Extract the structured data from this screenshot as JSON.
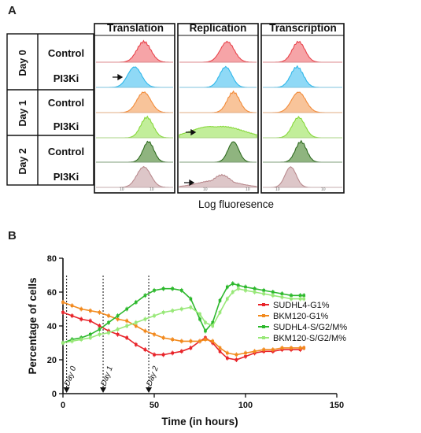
{
  "panel_a": {
    "letter": "A",
    "columns": [
      "Translation",
      "Replication",
      "Transcription"
    ],
    "days": [
      "Day 0",
      "Day 1",
      "Day 2"
    ],
    "rows": [
      "Control",
      "PI3Ki",
      "Control",
      "PI3Ki",
      "Control",
      "PI3Ki"
    ],
    "row_colors": [
      "#e8424a",
      "#2fb7ea",
      "#f28a38",
      "#86d83a",
      "#2f6b20",
      "#b98a8e"
    ],
    "row_fills": [
      "#f6a4a7",
      "#8fd9f6",
      "#f8c49a",
      "#c2ee9a",
      "#8fb47f",
      "#ddc6c8"
    ],
    "x_caption": "Log fluoresence",
    "mini_tick_label": "10"
  },
  "panel_b": {
    "letter": "B"
  },
  "chart_data": [
    {
      "type": "line",
      "title": "",
      "xlabel": "Time (in hours)",
      "ylabel": "Percentage of cells",
      "xlim": [
        0,
        150
      ],
      "ylim": [
        0,
        80
      ],
      "xticks": [
        0,
        50,
        100,
        150
      ],
      "yticks": [
        0,
        20,
        40,
        60,
        80
      ],
      "legend_position": "right",
      "grid": false,
      "annotations": [
        {
          "text": "Day 0",
          "x": 2
        },
        {
          "text": "Day 1",
          "x": 22
        },
        {
          "text": "Day 2",
          "x": 47
        }
      ],
      "series": [
        {
          "name": "SUDHL4-G1%",
          "color": "#e8242a",
          "x": [
            0,
            5,
            10,
            15,
            20,
            25,
            30,
            35,
            40,
            45,
            50,
            55,
            60,
            65,
            70,
            75,
            78,
            82,
            86,
            90,
            95,
            100,
            105,
            110,
            115,
            120,
            125,
            130,
            132
          ],
          "y": [
            48,
            46,
            44,
            43,
            40,
            37,
            35,
            33,
            29,
            26,
            23,
            23,
            24,
            25,
            27,
            31,
            33,
            30,
            25,
            21,
            20,
            22,
            24,
            25,
            25,
            26,
            26,
            26,
            27
          ]
        },
        {
          "name": "BKM120-G1%",
          "color": "#f28a1e",
          "x": [
            0,
            5,
            10,
            15,
            20,
            25,
            30,
            35,
            40,
            45,
            50,
            55,
            60,
            65,
            70,
            75,
            78,
            82,
            86,
            90,
            95,
            100,
            105,
            110,
            115,
            120,
            125,
            130,
            132
          ],
          "y": [
            54,
            52,
            50,
            49,
            48,
            46,
            44,
            43,
            40,
            37,
            35,
            33,
            32,
            31,
            31,
            31,
            32,
            31,
            27,
            24,
            23,
            24,
            25,
            26,
            26,
            27,
            27,
            27,
            27
          ]
        },
        {
          "name": "SUDHL4-S/G2/M%",
          "color": "#2db82d",
          "x": [
            0,
            5,
            10,
            15,
            20,
            25,
            30,
            35,
            40,
            45,
            50,
            55,
            60,
            65,
            70,
            75,
            78,
            82,
            86,
            90,
            93,
            96,
            100,
            105,
            110,
            115,
            120,
            125,
            130,
            132
          ],
          "y": [
            30,
            32,
            33,
            35,
            38,
            42,
            46,
            50,
            54,
            58,
            61,
            62,
            62,
            61,
            56,
            44,
            37,
            42,
            55,
            63,
            65,
            64,
            63,
            62,
            61,
            60,
            59,
            58,
            58,
            58
          ]
        },
        {
          "name": "BKM120-S/G2/M%",
          "color": "#98e878",
          "x": [
            0,
            5,
            10,
            15,
            20,
            25,
            30,
            35,
            40,
            45,
            50,
            55,
            60,
            65,
            70,
            75,
            78,
            82,
            86,
            90,
            93,
            96,
            100,
            105,
            110,
            115,
            120,
            125,
            130,
            132
          ],
          "y": [
            30,
            31,
            32,
            33,
            35,
            36,
            38,
            40,
            42,
            44,
            46,
            48,
            49,
            50,
            51,
            47,
            42,
            40,
            48,
            56,
            60,
            62,
            61,
            60,
            59,
            58,
            57,
            56,
            56,
            56
          ]
        }
      ]
    }
  ]
}
